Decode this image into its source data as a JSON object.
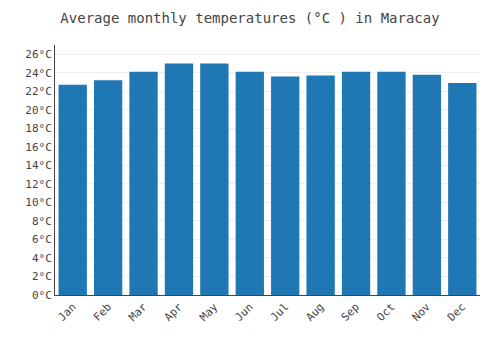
{
  "chart_data": {
    "type": "bar",
    "title": "Average monthly temperatures (°C ) in Maracay",
    "categories": [
      "Jan",
      "Feb",
      "Mar",
      "Apr",
      "May",
      "Jun",
      "Jul",
      "Aug",
      "Sep",
      "Oct",
      "Nov",
      "Dec"
    ],
    "values": [
      22.7,
      23.2,
      24.1,
      25.0,
      25.0,
      24.1,
      23.6,
      23.7,
      24.1,
      24.1,
      23.8,
      22.9
    ],
    "ylim": [
      0,
      27
    ],
    "yticks": [
      {
        "value": 0,
        "label": "0°C"
      },
      {
        "value": 2,
        "label": "2°C"
      },
      {
        "value": 4,
        "label": "4°C"
      },
      {
        "value": 6,
        "label": "6°C"
      },
      {
        "value": 8,
        "label": "8°C"
      },
      {
        "value": 10,
        "label": "10°C"
      },
      {
        "value": 12,
        "label": "12°C"
      },
      {
        "value": 14,
        "label": "14°C"
      },
      {
        "value": 16,
        "label": "16°C"
      },
      {
        "value": 18,
        "label": "18°C"
      },
      {
        "value": 20,
        "label": "20°C"
      },
      {
        "value": 22,
        "label": "22°C"
      },
      {
        "value": 24,
        "label": "24°C"
      },
      {
        "value": 26,
        "label": "26°C"
      }
    ],
    "grid": true
  }
}
